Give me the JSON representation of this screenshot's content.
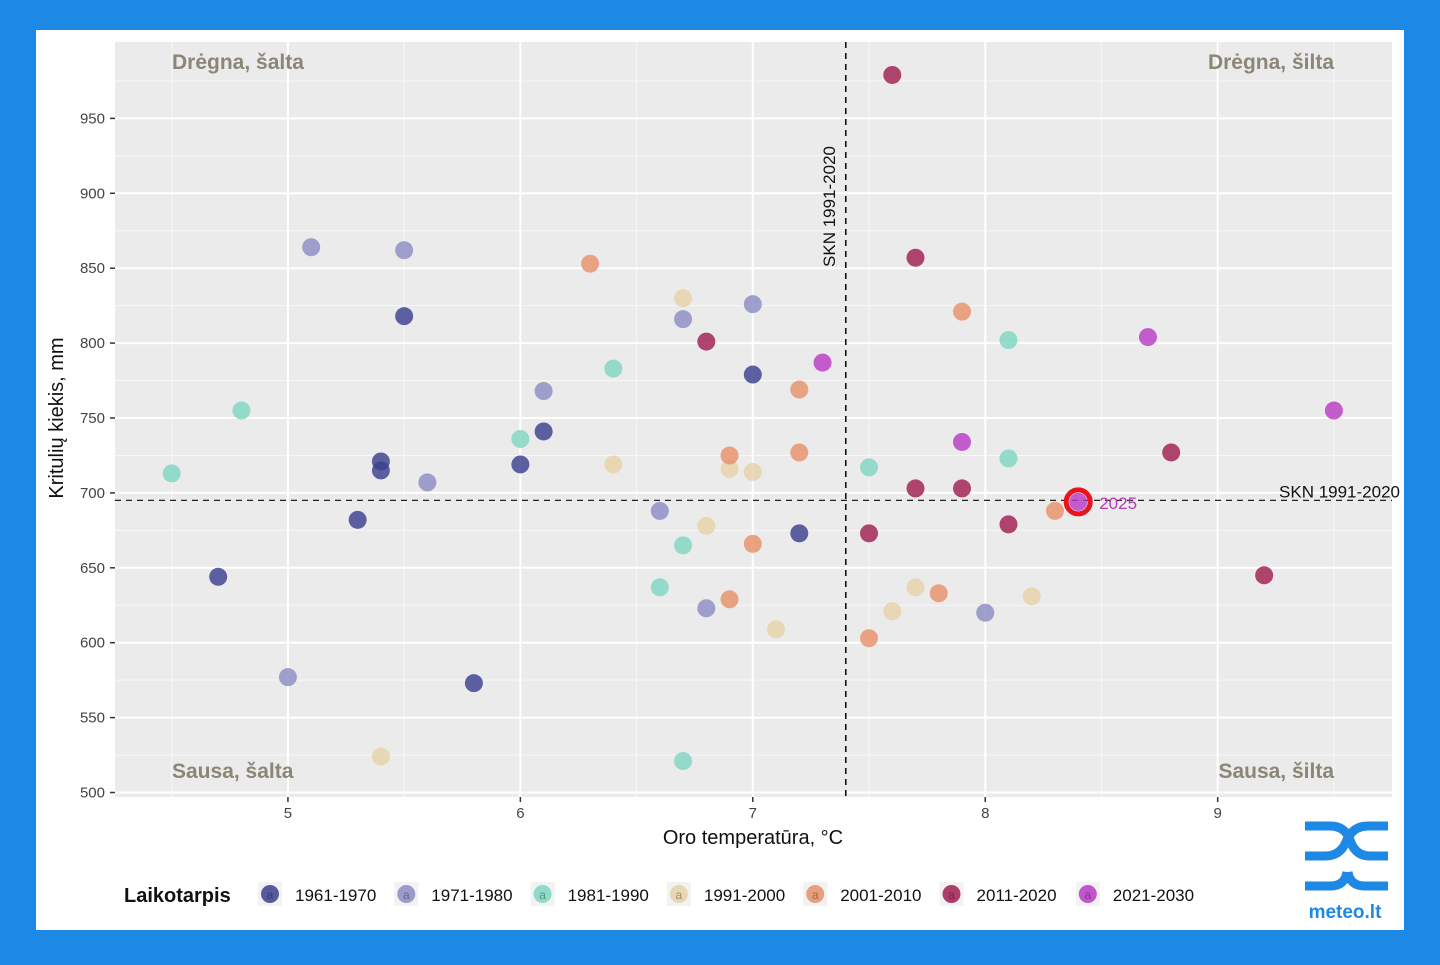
{
  "chart_data": {
    "type": "scatter",
    "xlabel": "Oro temperatūra, °C",
    "ylabel": "Kritulių kiekis, mm",
    "xlim": [
      4.256,
      9.75
    ],
    "ylim": [
      497,
      1001
    ],
    "xticks": [
      5,
      6,
      7,
      8,
      9
    ],
    "yticks": [
      500,
      550,
      600,
      650,
      700,
      750,
      800,
      850,
      900,
      950
    ],
    "grid": true,
    "legend_title": "Laikotarpis",
    "legend_position": "bottom",
    "quadrant_labels": {
      "top_left": "Drėgna, šalta",
      "top_right": "Drėgna, šilta",
      "bottom_left": "Sausa, šalta",
      "bottom_right": "Sausa, šilta"
    },
    "reference_lines": {
      "vertical": {
        "x": 7.4,
        "label": "SKN 1991-2020"
      },
      "horizontal": {
        "y": 695,
        "label": "SKN 1991-2020"
      }
    },
    "highlight": {
      "label": "2025",
      "x": 8.4,
      "y": 694,
      "series": "2021-2030",
      "ring_color": "#e8141e",
      "label_color": "#b53bb5"
    },
    "series": [
      {
        "name": "1961-1970",
        "color": "#3b3f8f",
        "points": [
          [
            4.7,
            644
          ],
          [
            5.3,
            682
          ],
          [
            5.4,
            721
          ],
          [
            5.4,
            715
          ],
          [
            5.5,
            818
          ],
          [
            5.8,
            573
          ],
          [
            6.0,
            719
          ],
          [
            6.1,
            741
          ],
          [
            7.0,
            779
          ],
          [
            7.2,
            673
          ]
        ]
      },
      {
        "name": "1971-1980",
        "color": "#8c8cc4",
        "points": [
          [
            5.1,
            864
          ],
          [
            5.5,
            862
          ],
          [
            5.0,
            577
          ],
          [
            5.6,
            707
          ],
          [
            6.1,
            768
          ],
          [
            6.6,
            688
          ],
          [
            6.7,
            816
          ],
          [
            6.8,
            623
          ],
          [
            7.0,
            826
          ],
          [
            8.0,
            620
          ]
        ]
      },
      {
        "name": "1981-1990",
        "color": "#7fd6c3",
        "points": [
          [
            4.5,
            713
          ],
          [
            4.8,
            755
          ],
          [
            6.0,
            736
          ],
          [
            6.4,
            783
          ],
          [
            6.6,
            637
          ],
          [
            6.7,
            665
          ],
          [
            6.7,
            521
          ],
          [
            7.5,
            717
          ],
          [
            8.1,
            802
          ],
          [
            8.1,
            723
          ]
        ]
      },
      {
        "name": "1991-2000",
        "color": "#e6d2a8",
        "points": [
          [
            5.4,
            524
          ],
          [
            6.4,
            719
          ],
          [
            6.7,
            830
          ],
          [
            6.8,
            678
          ],
          [
            6.9,
            716
          ],
          [
            7.0,
            714
          ],
          [
            7.1,
            609
          ],
          [
            7.6,
            621
          ],
          [
            7.7,
            637
          ],
          [
            8.2,
            631
          ]
        ]
      },
      {
        "name": "2001-2010",
        "color": "#e6916a",
        "points": [
          [
            6.3,
            853
          ],
          [
            6.9,
            725
          ],
          [
            6.9,
            629
          ],
          [
            7.0,
            666
          ],
          [
            7.2,
            769
          ],
          [
            7.2,
            727
          ],
          [
            7.5,
            603
          ],
          [
            7.8,
            633
          ],
          [
            7.9,
            821
          ],
          [
            8.3,
            688
          ]
        ]
      },
      {
        "name": "2011-2020",
        "color": "#a01e50",
        "points": [
          [
            7.6,
            979
          ],
          [
            6.8,
            801
          ],
          [
            7.7,
            857
          ],
          [
            7.5,
            673
          ],
          [
            7.7,
            703
          ],
          [
            7.9,
            703
          ],
          [
            8.1,
            679
          ],
          [
            8.8,
            727
          ],
          [
            9.2,
            645
          ]
        ]
      },
      {
        "name": "2021-2030",
        "color": "#b83ac4",
        "points": [
          [
            7.3,
            787
          ],
          [
            7.9,
            734
          ],
          [
            8.7,
            804
          ],
          [
            9.5,
            755
          ],
          [
            8.4,
            694
          ]
        ]
      }
    ]
  },
  "logo": {
    "text": "meteo.lt",
    "color": "#1e88e5"
  },
  "frame_color": "#1e88e5"
}
